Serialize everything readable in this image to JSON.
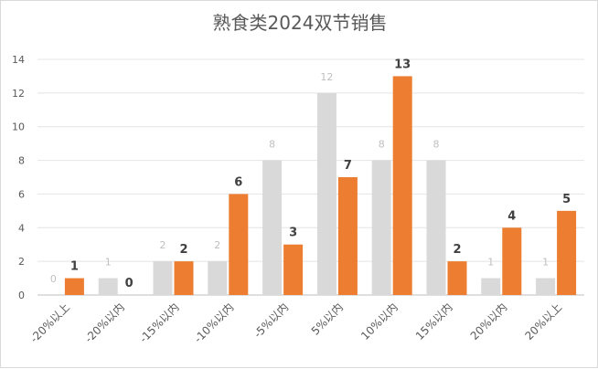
{
  "chart_data": {
    "type": "bar",
    "title": "熟食类2024双节销售",
    "xlabel": "",
    "ylabel": "",
    "categories": [
      "-20%以上",
      "-20%以内",
      "-15%以内",
      "-10%以内",
      "-5%以内",
      "5%以内",
      "10%以内",
      "15%以内",
      "20%以内",
      "20%以上"
    ],
    "series": [
      {
        "values": [
          0,
          1,
          2,
          2,
          8,
          12,
          8,
          8,
          1,
          1
        ],
        "color": "#d9d9d9"
      },
      {
        "values": [
          1,
          0,
          2,
          6,
          3,
          7,
          13,
          2,
          4,
          5
        ],
        "color": "#ed7d31"
      }
    ],
    "ylim": [
      0,
      14
    ],
    "yticks": [
      0,
      2,
      4,
      6,
      8,
      10,
      12,
      14
    ],
    "grid": true,
    "legend": "none"
  }
}
